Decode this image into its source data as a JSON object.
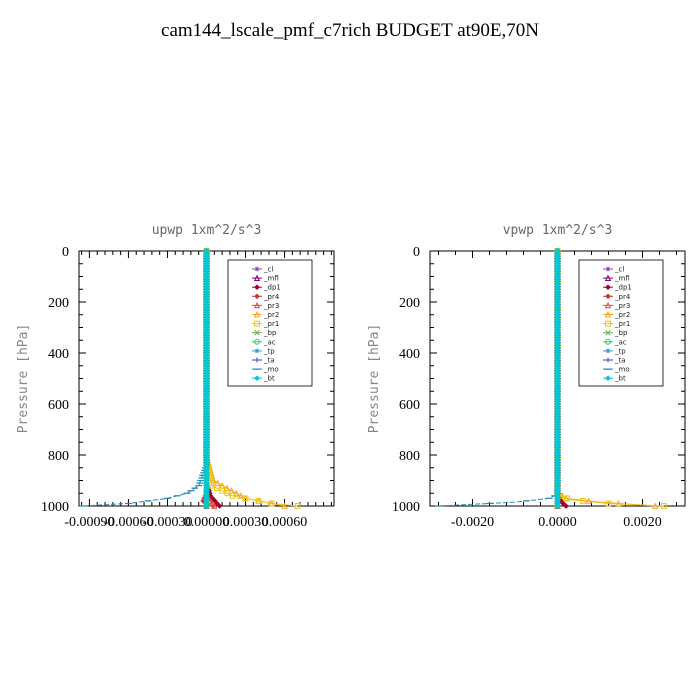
{
  "figure": {
    "title": "cam144_lscale_pmf_c7rich  BUDGET at90E,70N"
  },
  "chart_data": [
    {
      "type": "line",
      "title": "upwp   1xm^2/s^3",
      "ylabel": "Pressure [hPa]",
      "ylim": [
        1000,
        0
      ],
      "y_ticks": [
        0,
        200,
        400,
        600,
        800,
        1000
      ],
      "y_tick_labels": [
        "0",
        "200",
        "400",
        "600",
        "800",
        "1000"
      ],
      "xlim": [
        -0.00098,
        0.00098
      ],
      "x_ticks": [
        -0.0009,
        -0.0006,
        -0.0003,
        0.0,
        0.0003,
        0.0006
      ],
      "x_tick_labels": [
        "-0.00090",
        "-0.00060",
        "-0.00030",
        "0.00000",
        "0.00030",
        "0.00060"
      ],
      "legend_position": "top-right",
      "series": [
        {
          "name": "_cl",
          "color": "#8e44ad",
          "marker": "star",
          "points": [
            [
              0,
              0
            ],
            [
              0,
              500
            ],
            [
              0,
              1000
            ]
          ]
        },
        {
          "name": "_mfl",
          "color": "#800080",
          "marker": "triangle",
          "points": [
            [
              0,
              0
            ],
            [
              0,
              500
            ],
            [
              0,
              1000
            ]
          ]
        },
        {
          "name": "_dp1",
          "color": "#a0002a",
          "marker": "diamond",
          "points": [
            [
              0,
              0
            ],
            [
              0,
              900
            ],
            [
              3e-05,
              960
            ],
            [
              8e-05,
              990
            ],
            [
              0.0001,
              1000
            ]
          ]
        },
        {
          "name": "_pr4",
          "color": "#c0392b",
          "marker": "diamond",
          "points": [
            [
              0,
              0
            ],
            [
              0,
              950
            ],
            [
              -3e-05,
              985
            ],
            [
              5e-05,
              1000
            ]
          ]
        },
        {
          "name": "_pr3",
          "color": "#e74c3c",
          "marker": "triangle",
          "points": [
            [
              0,
              0
            ],
            [
              0,
              960
            ],
            [
              4e-05,
              990
            ],
            [
              6e-05,
              1000
            ]
          ]
        },
        {
          "name": "_pr2",
          "color": "#f5a623",
          "marker": "triangle",
          "points": [
            [
              0,
              0
            ],
            [
              0,
              800
            ],
            [
              5e-05,
              900
            ],
            [
              0.0003,
              970
            ],
            [
              0.0006,
              1000
            ]
          ]
        },
        {
          "name": "_pr1",
          "color": "#f1c40f",
          "marker": "square",
          "points": [
            [
              0,
              0
            ],
            [
              0,
              820
            ],
            [
              4e-05,
              920
            ],
            [
              0.0002,
              960
            ],
            [
              0.0005,
              990
            ],
            [
              0.0007,
              1000
            ]
          ]
        },
        {
          "name": "_bp",
          "color": "#6ab04c",
          "marker": "x",
          "points": [
            [
              0,
              0
            ],
            [
              0,
              1000
            ]
          ]
        },
        {
          "name": "_ac",
          "color": "#2ecc71",
          "marker": "circle",
          "points": [
            [
              0,
              0
            ],
            [
              0,
              1000
            ]
          ]
        },
        {
          "name": "_tp",
          "color": "#3498db",
          "marker": "star",
          "points": [
            [
              0,
              0
            ],
            [
              0,
              1000
            ]
          ]
        },
        {
          "name": "_ta",
          "color": "#3b3bcf",
          "marker": "plus",
          "points": [
            [
              0,
              0
            ],
            [
              0,
              1000
            ]
          ]
        },
        {
          "name": "_mo",
          "color": "#1f8ab5",
          "marker": "dash",
          "points": [
            [
              0,
              0
            ],
            [
              0,
              840
            ],
            [
              -6e-05,
              920
            ],
            [
              -0.00015,
              950
            ],
            [
              -0.0003,
              970
            ],
            [
              -0.0006,
              990
            ],
            [
              -0.00095,
              1000
            ]
          ]
        },
        {
          "name": "_bt",
          "color": "#00c8d8",
          "marker": "diamond",
          "points": [
            [
              0,
              0
            ],
            [
              0,
              1000
            ]
          ]
        }
      ]
    },
    {
      "type": "line",
      "title": "vpwp   1xm^2/s^3",
      "ylabel": "Pressure [hPa]",
      "ylim": [
        1000,
        0
      ],
      "y_ticks": [
        0,
        200,
        400,
        600,
        800,
        1000
      ],
      "y_tick_labels": [
        "0",
        "200",
        "400",
        "600",
        "800",
        "1000"
      ],
      "xlim": [
        -0.003,
        0.003
      ],
      "x_ticks": [
        -0.002,
        0.0,
        0.002
      ],
      "x_tick_labels": [
        "-0.0020",
        "0.0000",
        "0.0020"
      ],
      "legend_position": "top-right",
      "series": [
        {
          "name": "_cl",
          "color": "#8e44ad",
          "marker": "star",
          "points": [
            [
              0,
              0
            ],
            [
              0,
              500
            ],
            [
              0,
              1000
            ]
          ]
        },
        {
          "name": "_mfl",
          "color": "#800080",
          "marker": "triangle",
          "points": [
            [
              0,
              0
            ],
            [
              0,
              500
            ],
            [
              0,
              1000
            ]
          ]
        },
        {
          "name": "_dp1",
          "color": "#a0002a",
          "marker": "diamond",
          "points": [
            [
              0,
              0
            ],
            [
              0,
              950
            ],
            [
              0.0001,
              985
            ],
            [
              0.0002,
              1000
            ]
          ]
        },
        {
          "name": "_pr4",
          "color": "#c0392b",
          "marker": "diamond",
          "points": [
            [
              0,
              0
            ],
            [
              0,
              1000
            ]
          ]
        },
        {
          "name": "_pr3",
          "color": "#e74c3c",
          "marker": "triangle",
          "points": [
            [
              0,
              0
            ],
            [
              0,
              1000
            ]
          ]
        },
        {
          "name": "_pr2",
          "color": "#f5a623",
          "marker": "triangle",
          "points": [
            [
              0,
              0
            ],
            [
              0,
              950
            ],
            [
              0.0002,
              970
            ],
            [
              0.001,
              985
            ],
            [
              0.0023,
              1000
            ]
          ]
        },
        {
          "name": "_pr1",
          "color": "#f1c40f",
          "marker": "square",
          "points": [
            [
              0,
              0
            ],
            [
              0,
              955
            ],
            [
              0.0003,
              975
            ],
            [
              0.0012,
              990
            ],
            [
              0.0025,
              1000
            ]
          ]
        },
        {
          "name": "_bp",
          "color": "#6ab04c",
          "marker": "x",
          "points": [
            [
              0,
              0
            ],
            [
              0,
              1000
            ]
          ]
        },
        {
          "name": "_ac",
          "color": "#2ecc71",
          "marker": "circle",
          "points": [
            [
              0,
              0
            ],
            [
              0,
              1000
            ]
          ]
        },
        {
          "name": "_tp",
          "color": "#3498db",
          "marker": "star",
          "points": [
            [
              0,
              0
            ],
            [
              0,
              1000
            ]
          ]
        },
        {
          "name": "_ta",
          "color": "#3b3bcf",
          "marker": "plus",
          "points": [
            [
              0,
              0
            ],
            [
              0,
              1000
            ]
          ]
        },
        {
          "name": "_mo",
          "color": "#1f8ab5",
          "marker": "dash",
          "points": [
            [
              0,
              0
            ],
            [
              0,
              955
            ],
            [
              -0.0002,
              970
            ],
            [
              -0.001,
              985
            ],
            [
              -0.0028,
              1000
            ]
          ]
        },
        {
          "name": "_bt",
          "color": "#00c8d8",
          "marker": "diamond",
          "points": [
            [
              0,
              0
            ],
            [
              0,
              1000
            ]
          ]
        }
      ]
    }
  ]
}
